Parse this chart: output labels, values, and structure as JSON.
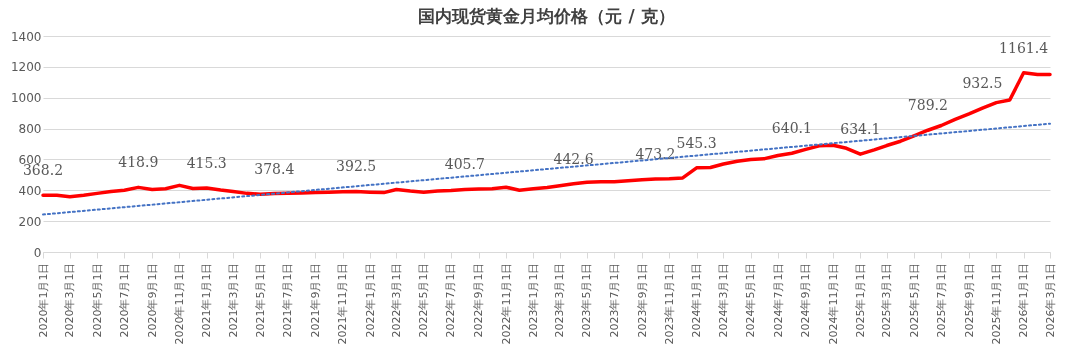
{
  "chart_data": {
    "type": "line",
    "title": "国内现货黄金月均价格（元 / 克）",
    "x": [
      "2020-01",
      "2020-02",
      "2020-03",
      "2020-04",
      "2020-05",
      "2020-06",
      "2020-07",
      "2020-08",
      "2020-09",
      "2020-10",
      "2020-11",
      "2020-12",
      "2021-01",
      "2021-02",
      "2021-03",
      "2021-04",
      "2021-05",
      "2021-06",
      "2021-07",
      "2021-08",
      "2021-09",
      "2021-10",
      "2021-11",
      "2021-12",
      "2022-01",
      "2022-02",
      "2022-03",
      "2022-04",
      "2022-05",
      "2022-06",
      "2022-07",
      "2022-08",
      "2022-09",
      "2022-10",
      "2022-11",
      "2022-12",
      "2023-01",
      "2023-02",
      "2023-03",
      "2023-04",
      "2023-05",
      "2023-06",
      "2023-07",
      "2023-08",
      "2023-09",
      "2023-10",
      "2023-11",
      "2023-12",
      "2024-01",
      "2024-02",
      "2024-03",
      "2024-04",
      "2024-05",
      "2024-06",
      "2024-07",
      "2024-08",
      "2024-09",
      "2024-10",
      "2024-11",
      "2024-12",
      "2025-01",
      "2025-02",
      "2025-03",
      "2025-04",
      "2025-05",
      "2025-06",
      "2025-07",
      "2025-08",
      "2025-09",
      "2025-10",
      "2025-11",
      "2025-12",
      "2026-01",
      "2026-02",
      "2026-03"
    ],
    "series": [
      {
        "color": "#ff0000",
        "line_style": "solid",
        "values": [
          368.2,
          368,
          358,
          368,
          380,
          392,
          400,
          418.9,
          405,
          410,
          432,
          412,
          415.3,
          402,
          392,
          380,
          375,
          378.4,
          380,
          382,
          385,
          388,
          390,
          392.5,
          388,
          385,
          405,
          395,
          388,
          395,
          398,
          405.7,
          408,
          410,
          420,
          400,
          410,
          418,
          430,
          442.6,
          452,
          455,
          455,
          462,
          468,
          473.2,
          474,
          480,
          545.3,
          548,
          570,
          588,
          600,
          605,
          625,
          640.1,
          665,
          688,
          692,
          672,
          634.1,
          662,
          690,
          718,
          752,
          789.2,
          820,
          860,
          895,
          932.5,
          968,
          985,
          1161.4,
          1150,
          1150
        ],
        "value_labels": [
          "368.2",
          null,
          null,
          null,
          null,
          null,
          null,
          "418.9",
          null,
          null,
          null,
          null,
          "415.3",
          null,
          null,
          null,
          null,
          "378.4",
          null,
          null,
          null,
          null,
          null,
          "392.5",
          null,
          null,
          null,
          null,
          null,
          null,
          null,
          "405.7",
          null,
          null,
          null,
          null,
          null,
          null,
          null,
          "442.6",
          null,
          null,
          null,
          null,
          null,
          "473.2",
          null,
          null,
          "545.3",
          null,
          null,
          null,
          null,
          null,
          null,
          "640.1",
          null,
          null,
          null,
          null,
          "634.1",
          null,
          null,
          null,
          null,
          "789.2",
          null,
          null,
          null,
          "932.5",
          null,
          null,
          "1161.4",
          null,
          null
        ]
      },
      {
        "type": "line",
        "color": "#4472c4",
        "line_style": "dotted",
        "x": [
          "2020-01",
          "2026-03"
        ],
        "values": [
          243,
          832
        ]
      }
    ],
    "ylim": [
      0,
      1400
    ],
    "yticks": [
      0,
      200,
      400,
      600,
      800,
      1000,
      1200,
      1400
    ],
    "xlim": [
      "2020-01",
      "2026-03"
    ],
    "xticks": [
      {
        "value": "2020-01",
        "label": "2020年1月1日"
      },
      {
        "value": "2020-03",
        "label": "2020年3月1日"
      },
      {
        "value": "2020-05",
        "label": "2020年5月1日"
      },
      {
        "value": "2020-07",
        "label": "2020年7月1日"
      },
      {
        "value": "2020-09",
        "label": "2020年9月1日"
      },
      {
        "value": "2020-11",
        "label": "2020年11月1日"
      },
      {
        "value": "2021-01",
        "label": "2021年1月1日"
      },
      {
        "value": "2021-03",
        "label": "2021年3月1日"
      },
      {
        "value": "2021-05",
        "label": "2021年5月1日"
      },
      {
        "value": "2021-07",
        "label": "2021年7月1日"
      },
      {
        "value": "2021-09",
        "label": "2021年9月1日"
      },
      {
        "value": "2021-11",
        "label": "2021年11月1日"
      },
      {
        "value": "2022-01",
        "label": "2022年1月1日"
      },
      {
        "value": "2022-03",
        "label": "2022年3月1日"
      },
      {
        "value": "2022-05",
        "label": "2022年5月1日"
      },
      {
        "value": "2022-07",
        "label": "2022年7月1日"
      },
      {
        "value": "2022-09",
        "label": "2022年9月1日"
      },
      {
        "value": "2022-11",
        "label": "2022年11月1日"
      },
      {
        "value": "2023-01",
        "label": "2023年1月1日"
      },
      {
        "value": "2023-03",
        "label": "2023年3月1日"
      },
      {
        "value": "2023-05",
        "label": "2023年5月1日"
      },
      {
        "value": "2023-07",
        "label": "2023年7月1日"
      },
      {
        "value": "2023-09",
        "label": "2023年9月1日"
      },
      {
        "value": "2023-11",
        "label": "2023年11月1日"
      },
      {
        "value": "2024-01",
        "label": "2024年1月1日"
      },
      {
        "value": "2024-03",
        "label": "2024年3月1日"
      },
      {
        "value": "2024-05",
        "label": "2024年5月1日"
      },
      {
        "value": "2024-07",
        "label": "2024年7月1日"
      },
      {
        "value": "2024-09",
        "label": "2024年9月1日"
      },
      {
        "value": "2024-11",
        "label": "2024年11月1日"
      },
      {
        "value": "2025-01",
        "label": "2025年1月1日"
      },
      {
        "value": "2025-03",
        "label": "2025年3月1日"
      },
      {
        "value": "2025-05",
        "label": "2025年5月1日"
      },
      {
        "value": "2025-07",
        "label": "2025年7月1日"
      },
      {
        "value": "2025-09",
        "label": "2025年9月1日"
      },
      {
        "value": "2025-11",
        "label": "2025年11月1日"
      },
      {
        "value": "2026-01",
        "label": "2026年1月1日"
      },
      {
        "value": "2026-03",
        "label": "2026年3月1日"
      }
    ],
    "grid": "y",
    "marker": "none"
  }
}
